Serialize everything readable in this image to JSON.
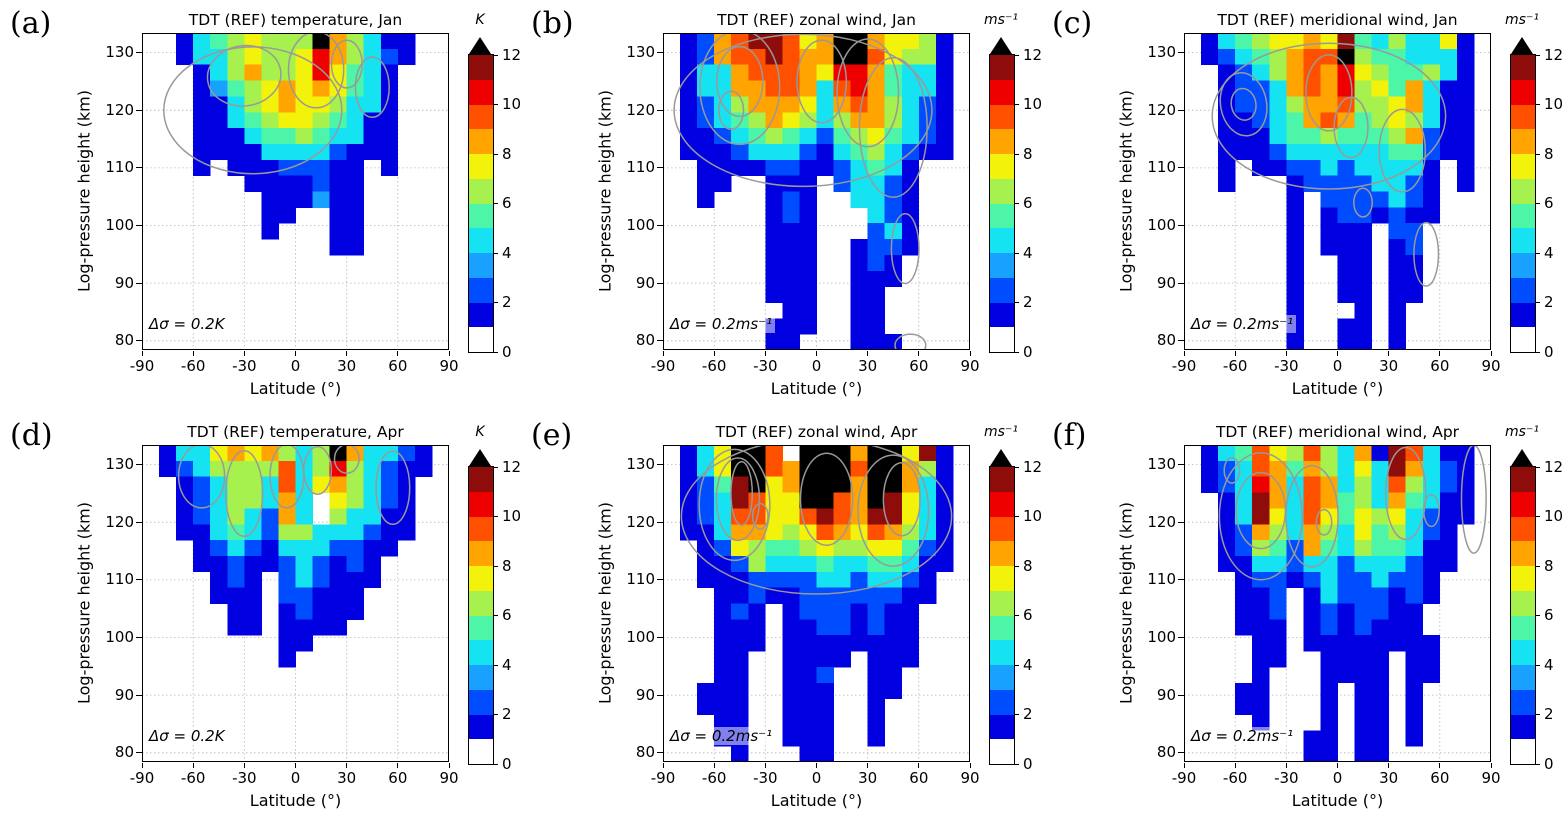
{
  "chart_data": {
    "type": "heatmap",
    "x": {
      "label": "Latitude (°)",
      "ticks": [
        -90,
        -60,
        -30,
        0,
        30,
        60,
        90
      ],
      "range": [
        -90,
        90
      ],
      "bin_width_deg": 10
    },
    "y": {
      "label": "Log-pressure height (km)",
      "ticks": [
        80,
        90,
        100,
        110,
        120,
        130
      ],
      "range": [
        78.4,
        133.4
      ],
      "bin_height_km": 2.75
    },
    "colorbar": {
      "ticks": [
        0,
        2,
        4,
        6,
        8,
        10,
        12
      ],
      "range": [
        0,
        12
      ],
      "over": "values above 12 shown black (arrow)"
    },
    "levels_colors": [
      "#ffffff",
      "#0000e1",
      "#004dff",
      "#19a1ff",
      "#16e3f2",
      "#4df5a9",
      "#a6f14d",
      "#f2f20b",
      "#ffa401",
      "#ff5000",
      "#ef0000",
      "#8e0c0a",
      "#000000"
    ],
    "grid_encoding": "rows top to bottom = 133.4 to 78.4 km in 20 bins of 2.75 km; cols left to right = -90 to 90 deg in 18 bins of 10 deg; '.' = no data (white), '1'-'9','A','B' = sigma value bin 1-12, 'C' = sigma above 12 (black)",
    "panels": [
      {
        "id": "a",
        "letter": "(a)",
        "title": "TDT (REF) temperature, Jan",
        "unit": "K",
        "annotation": "Δσ = 0.2K",
        "grid": [
          "..14567666C86411..",
          "..14467667A86421..",
          "...1468667A7541...",
          "...135678787541...",
          "...114678776441...",
          "...114567765411...",
          "...111455654411...",
          "...111144442111...",
          "...1.11122211.1...",
          "......1111211.....",
          ".......111311.....",
          ".......11..11.....",
          ".......1...11.....",
          "...........11.....",
          "..................",
          "..................",
          "..................",
          "..................",
          "..................",
          ".................."
        ],
        "contours": [
          [
            0.361,
            0.244,
            0.29,
            0.2,
            0
          ],
          [
            0.333,
            0.135,
            0.12,
            0.095,
            -8
          ],
          [
            0.567,
            0.116,
            0.09,
            0.12,
            0
          ],
          [
            0.667,
            0.098,
            0.05,
            0.075,
            0
          ],
          [
            0.75,
            0.171,
            0.055,
            0.095,
            0
          ]
        ]
      },
      {
        "id": "b",
        "letter": "(b)",
        "title": "TDT (REF) zonal wind, Jan",
        "unit": "ms⁻¹",
        "annotation": "Δσ = 0.2ms⁻¹",
        "grid": [
          ".1289BB978CC87761.",
          ".12899B988CC97661.",
          ".144899987AA85441.",
          ".1448899849A85441.",
          ".1246888748986421.",
          ".1245687646886421.",
          ".1124565425675421.",
          ".1112444214564211.",
          "..1111221124541...",
          "..11..111.24421...",
          "..1...121..4421...",
          "......121...421...",
          "......111...241...",
          "......111..1221...",
          "......111..121....",
          "......111..111....",
          "......111..11.....",
          ".......11..11.....",
          "......111..11.....",
          "......11...111...."
        ],
        "contours": [
          [
            0.456,
            0.244,
            0.42,
            0.24,
            0
          ],
          [
            0.25,
            0.171,
            0.13,
            0.18,
            0
          ],
          [
            0.25,
            0.153,
            0.075,
            0.11,
            0
          ],
          [
            0.222,
            0.244,
            0.04,
            0.06,
            0
          ],
          [
            0.517,
            0.153,
            0.08,
            0.13,
            0
          ],
          [
            0.667,
            0.189,
            0.1,
            0.17,
            0
          ],
          [
            0.75,
            0.298,
            0.11,
            0.22,
            0
          ],
          [
            0.789,
            0.68,
            0.045,
            0.11,
            0
          ],
          [
            0.806,
            0.985,
            0.05,
            0.035,
            0
          ]
        ]
      },
      {
        "id": "c",
        "letter": "(c)",
        "title": "TDT (REF) meridional wind, Jan",
        "unit": "ms⁻¹",
        "annotation": "Δσ = 0.2ms⁻¹",
        "grid": [
          ".14567787B5464471.",
          ".12456899C6554441.",
          "..1246898A7655641.",
          "..1224898A6758411.",
          "..122468896678411.",
          "..112458985676411.",
          "..111455655568211.",
          "..111244444455211.",
          "..1.11224244441.1.",
          "..1...122224421.1.",
          "......1.2222421...",
          "......1.1221211...",
          "......1.111.22....",
          "......1.111.12....",
          "......1..11.11....",
          "......1..11.11....",
          "......1..11.11....",
          "......1...1.1.....",
          "......1..11.1.....",
          "......1..11.1....."
        ],
        "contours": [
          [
            0.472,
            0.262,
            0.38,
            0.23,
            0
          ],
          [
            0.194,
            0.225,
            0.075,
            0.1,
            -10
          ],
          [
            0.194,
            0.225,
            0.04,
            0.05,
            -10
          ],
          [
            0.472,
            0.189,
            0.075,
            0.12,
            0
          ],
          [
            0.544,
            0.298,
            0.055,
            0.095,
            0
          ],
          [
            0.711,
            0.371,
            0.075,
            0.13,
            0
          ],
          [
            0.789,
            0.698,
            0.04,
            0.1,
            0
          ],
          [
            0.583,
            0.535,
            0.03,
            0.045,
            0
          ]
        ]
      },
      {
        "id": "d",
        "letter": "(d)",
        "title": "TDT (REF) temperature, Apr",
        "unit": "K",
        "annotation": "Δσ = 0.2K",
        "grid": [
          ".1447878646C84421.",
          ".1246666946A64211.",
          "..12466494786421..",
          "..12466484.76421..",
          "..12464284.64411..",
          "..11454266444211..",
          "...124214442211...",
          "...11211242121....",
          "....121.242111....",
          "....111.22111.....",
          ".....11.12111.....",
          ".....11.1111......",
          "........11........",
          "........1.........",
          "..................",
          "..................",
          "..................",
          "..................",
          "..................",
          ".................."
        ],
        "contours": [
          [
            0.194,
            0.098,
            0.075,
            0.1,
            0
          ],
          [
            0.333,
            0.153,
            0.06,
            0.135,
            0
          ],
          [
            0.472,
            0.098,
            0.055,
            0.1,
            0
          ],
          [
            0.572,
            0.08,
            0.045,
            0.075,
            0
          ],
          [
            0.667,
            0.044,
            0.04,
            0.045,
            0
          ],
          [
            0.817,
            0.135,
            0.055,
            0.115,
            0
          ]
        ]
      },
      {
        "id": "e",
        "letter": "(e)",
        "title": "TDT (REF) zonal wind, Apr",
        "unit": "ms⁻¹",
        "annotation": "Δσ = 0.2ms⁻¹",
        "grid": [
          ".147CC9.CCC8CC7B1.",
          ".147CC98CCC9CC861.",
          ".125BC78CCC8CC841.",
          ".124B977CC98CB741.",
          ".12499779B98BB741.",
          ".1148876798798641.",
          "..127655676677521.",
          "..112644454455411.",
          "..11122224424421..",
          "...1121122222211..",
          "...121.12221211...",
          "...111.11221211...",
          "...111.11111111...",
          "...11..1111.111...",
          "...11..112..11....",
          "..111..111..11....",
          "..111..111..1.....",
          "...11..111..1.....",
          "...11..111..1.....",
          "....1...11........"
        ],
        "contours": [
          [
            0.5,
            0.225,
            0.44,
            0.245,
            0
          ],
          [
            0.233,
            0.189,
            0.115,
            0.175,
            0
          ],
          [
            0.244,
            0.171,
            0.07,
            0.13,
            0
          ],
          [
            0.256,
            0.153,
            0.035,
            0.1,
            0
          ],
          [
            0.533,
            0.171,
            0.085,
            0.145,
            0
          ],
          [
            0.75,
            0.207,
            0.115,
            0.175,
            0
          ],
          [
            0.778,
            0.171,
            0.06,
            0.115,
            0
          ],
          [
            0.317,
            0.225,
            0.025,
            0.04,
            0
          ]
        ]
      },
      {
        "id": "f",
        "letter": "(f)",
        "title": "TDT (REF) meridional wind, Apr",
        "unit": "ms⁻¹",
        "annotation": "Δσ = 0.2ms⁻¹",
        "grid": [
          ".14597696481B9411.",
          ".12498586474B8421.",
          ".124A849846496421.",
          "..14B849856485411.",
          "..14B749757674211.",
          "..12864864756421..",
          "..12652854655411..",
          "..11442442444211..",
          "...122124224221...",
          "...112.14222121...",
          "...112.1212211....",
          "...111.1212111....",
          "....11.11111111...",
          "....11..1111.11...",
          "....1...1111.11...",
          "...11...1.11.1....",
          "...11...1.11.1....",
          "....1...1.11.1....",
          ".......11.11.1....",
          ".......11.11......"
        ],
        "contours": [
          [
            0.25,
            0.225,
            0.135,
            0.2,
            0
          ],
          [
            0.25,
            0.207,
            0.08,
            0.12,
            0
          ],
          [
            0.417,
            0.225,
            0.085,
            0.16,
            0
          ],
          [
            0.456,
            0.244,
            0.025,
            0.04,
            0
          ],
          [
            0.722,
            0.153,
            0.065,
            0.145,
            0
          ],
          [
            0.806,
            0.207,
            0.025,
            0.05,
            0
          ],
          [
            0.944,
            0.171,
            0.04,
            0.17,
            0
          ],
          [
            0.156,
            0.08,
            0.025,
            0.04,
            0
          ]
        ]
      }
    ]
  }
}
